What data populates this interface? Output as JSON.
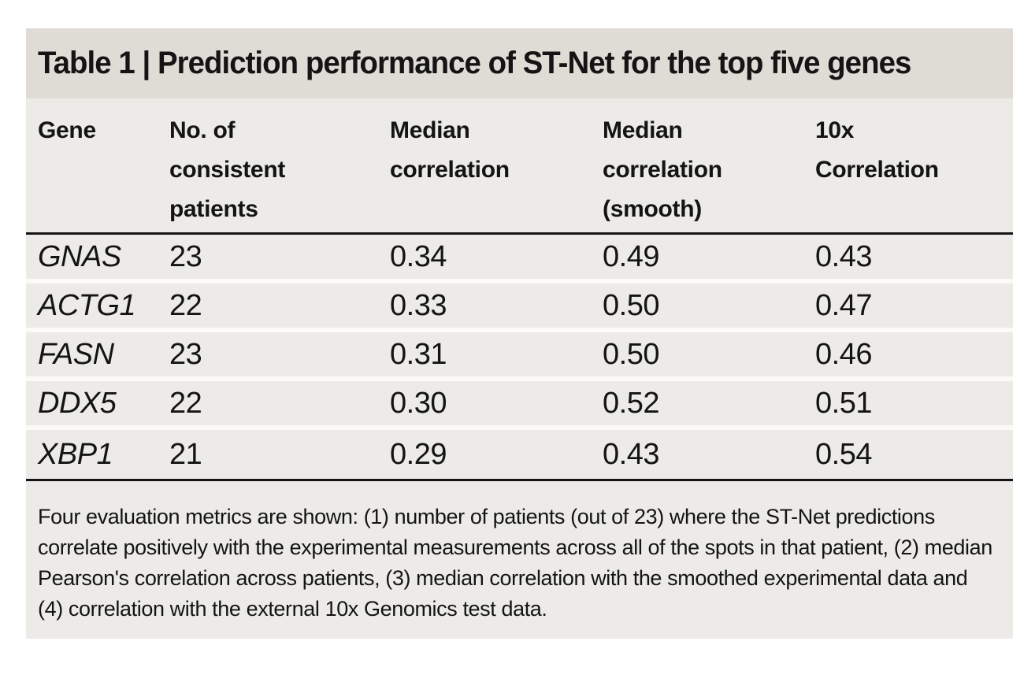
{
  "table": {
    "title": "Table 1 | Prediction performance of ST-Net for the top five genes",
    "columns": [
      {
        "label": "Gene"
      },
      {
        "label": "No. of\nconsistent\npatients"
      },
      {
        "label": "Median\ncorrelation"
      },
      {
        "label": "Median\ncorrelation\n(smooth)"
      },
      {
        "label": "10x\nCorrelation"
      }
    ],
    "rows": [
      [
        "GNAS",
        "23",
        "0.34",
        "0.49",
        "0.43"
      ],
      [
        "ACTG1",
        "22",
        "0.33",
        "0.50",
        "0.47"
      ],
      [
        "FASN",
        "23",
        "0.31",
        "0.50",
        "0.46"
      ],
      [
        "DDX5",
        "22",
        "0.30",
        "0.52",
        "0.51"
      ],
      [
        "XBP1",
        "21",
        "0.29",
        "0.43",
        "0.54"
      ]
    ],
    "footnote": "Four evaluation metrics are shown: (1) number of patients (out of 23) where the ST-Net predictions correlate positively with the experimental measurements across all of the spots in that patient, (2) median Pearson's correlation across patients, (3) median correlation with the smoothed experimental data and (4) correlation with the external 10x Genomics test data."
  },
  "colors": {
    "title_band_bg": "#dfdcd6",
    "body_bg": "#ecebe7",
    "rule": "#141414",
    "row_separator": "#fbfaf7",
    "text": "#141414",
    "page_bg": "#ffffff"
  }
}
